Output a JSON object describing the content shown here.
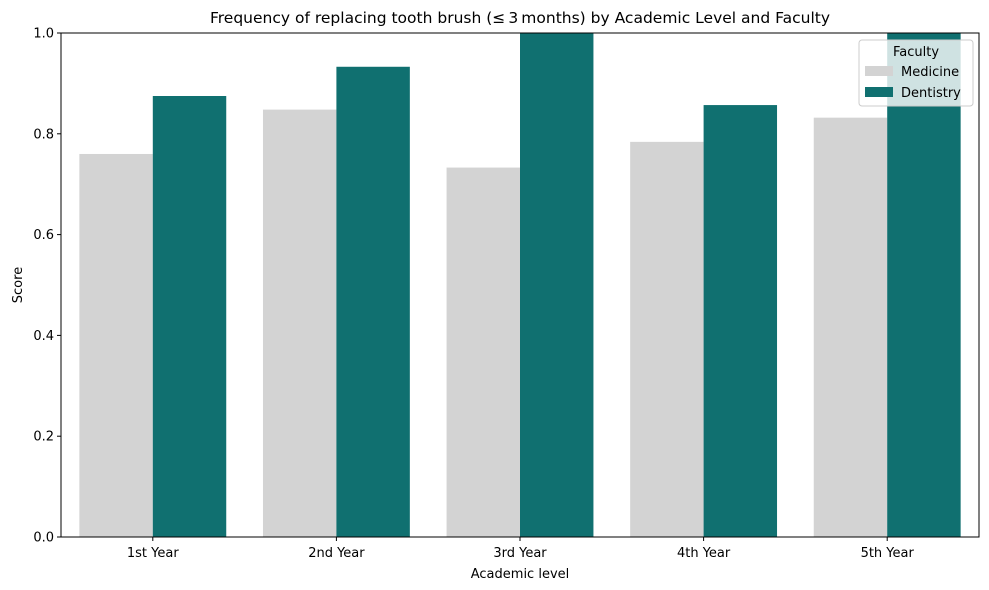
{
  "chart_data": {
    "type": "bar",
    "title": "Frequency of replacing tooth brush (≤ 3 months) by Academic Level and Faculty",
    "xlabel": "Academic level",
    "ylabel": "Score",
    "ylim": [
      0,
      1.0
    ],
    "yticks": [
      "0.0",
      "0.2",
      "0.4",
      "0.6",
      "0.8",
      "1.0"
    ],
    "categories": [
      "1st Year",
      "2nd Year",
      "3rd Year",
      "4th Year",
      "5th Year"
    ],
    "series": [
      {
        "name": "Medicine",
        "color": "#d3d3d3",
        "values": [
          0.76,
          0.848,
          0.733,
          0.784,
          0.832
        ]
      },
      {
        "name": "Dentistry",
        "color": "#107070",
        "values": [
          0.875,
          0.933,
          1.0,
          0.857,
          1.0
        ]
      }
    ],
    "legend": {
      "title": "Faculty",
      "placement": "top-right"
    },
    "grid": false
  }
}
